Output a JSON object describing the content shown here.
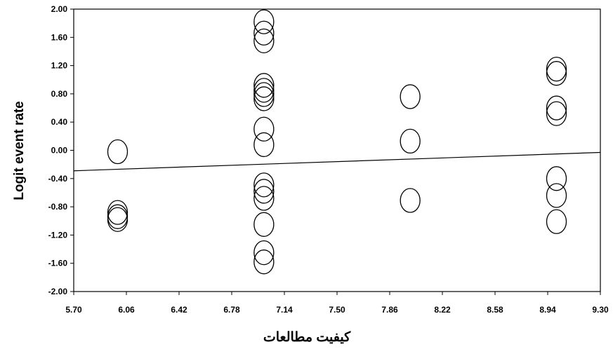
{
  "chart_data": {
    "type": "scatter",
    "title": "",
    "xlabel": "کیفیت مطالعات",
    "ylabel": "Logit event rate",
    "xlim": [
      5.7,
      9.3
    ],
    "ylim": [
      -2.0,
      2.0
    ],
    "x_ticks": [
      "5.70",
      "6.06",
      "6.42",
      "6.78",
      "7.14",
      "7.50",
      "7.86",
      "8.22",
      "8.58",
      "8.94",
      "9.30"
    ],
    "y_ticks": [
      "2.00",
      "1.60",
      "1.20",
      "0.80",
      "0.40",
      "0.00",
      "-0.40",
      "-0.80",
      "-1.20",
      "-1.60",
      "-2.00"
    ],
    "grid": false,
    "legend": "none",
    "points": [
      {
        "x": 6.0,
        "y": -0.02
      },
      {
        "x": 6.0,
        "y": -0.88
      },
      {
        "x": 6.0,
        "y": -0.94
      },
      {
        "x": 6.0,
        "y": -0.98
      },
      {
        "x": 7.0,
        "y": 1.82
      },
      {
        "x": 7.0,
        "y": 1.66
      },
      {
        "x": 7.0,
        "y": 1.55
      },
      {
        "x": 7.0,
        "y": 0.92
      },
      {
        "x": 7.0,
        "y": 0.85
      },
      {
        "x": 7.0,
        "y": 0.79
      },
      {
        "x": 7.0,
        "y": 0.73
      },
      {
        "x": 7.0,
        "y": 0.3
      },
      {
        "x": 7.0,
        "y": 0.08
      },
      {
        "x": 7.0,
        "y": -0.49
      },
      {
        "x": 7.0,
        "y": -0.58
      },
      {
        "x": 7.0,
        "y": -0.68
      },
      {
        "x": 7.0,
        "y": -1.05
      },
      {
        "x": 7.0,
        "y": -1.45
      },
      {
        "x": 7.0,
        "y": -1.58
      },
      {
        "x": 8.0,
        "y": 0.76
      },
      {
        "x": 8.0,
        "y": 0.13
      },
      {
        "x": 8.0,
        "y": -0.71
      },
      {
        "x": 9.0,
        "y": 1.15
      },
      {
        "x": 9.0,
        "y": 1.09
      },
      {
        "x": 9.0,
        "y": 0.6
      },
      {
        "x": 9.0,
        "y": 0.52
      },
      {
        "x": 9.0,
        "y": -0.4
      },
      {
        "x": 9.0,
        "y": -0.64
      },
      {
        "x": 9.0,
        "y": -1.01
      }
    ],
    "regression_line": {
      "x": [
        5.7,
        9.3
      ],
      "y": [
        -0.29,
        -0.03
      ]
    },
    "colors": {
      "marker_stroke": "#000000",
      "line": "#000000",
      "axis": "#000000"
    }
  }
}
